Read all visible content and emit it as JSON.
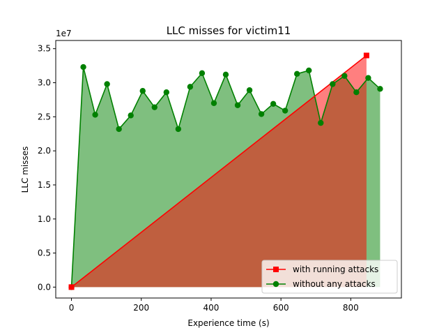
{
  "chart_data": {
    "type": "area",
    "title": "LLC misses for victim11",
    "xlabel": "Experience time (s)",
    "ylabel": "LLC misses",
    "y_scale_label": "1e7",
    "xlim": [
      -45,
      945
    ],
    "ylim": [
      -1.6,
      36.2
    ],
    "y_scale": 10000000,
    "x_ticks": [
      0,
      200,
      400,
      600,
      800
    ],
    "x_tick_labels": [
      "0",
      "200",
      "400",
      "600",
      "800"
    ],
    "y_ticks": [
      0,
      5,
      10,
      15,
      20,
      25,
      30,
      35
    ],
    "y_tick_labels": [
      "0.0",
      "0.5",
      "1.0",
      "1.5",
      "2.0",
      "2.5",
      "3.0",
      "3.5"
    ],
    "grid": false,
    "legend_position": "lower-right",
    "series": [
      {
        "name": "with running attacks",
        "color": "#ff0000",
        "fill_color": "#ff0000",
        "marker": "square",
        "x": [
          0,
          845
        ],
        "y": [
          0.0,
          34.0
        ]
      },
      {
        "name": "without any attacks",
        "color": "#008000",
        "fill_color": "#008000",
        "marker": "circle",
        "x": [
          0,
          34,
          68,
          102,
          136,
          170,
          204,
          238,
          272,
          306,
          340,
          374,
          408,
          442,
          476,
          510,
          544,
          578,
          612,
          646,
          680,
          714,
          748,
          782,
          816,
          850,
          884
        ],
        "y": [
          0.0,
          32.3,
          25.3,
          29.8,
          23.2,
          25.2,
          28.8,
          26.4,
          28.6,
          23.2,
          29.4,
          31.4,
          27.0,
          31.2,
          26.7,
          28.9,
          25.4,
          26.9,
          25.9,
          31.3,
          31.8,
          24.1,
          29.8,
          31.0,
          28.6,
          30.7,
          29.1
        ]
      }
    ]
  }
}
